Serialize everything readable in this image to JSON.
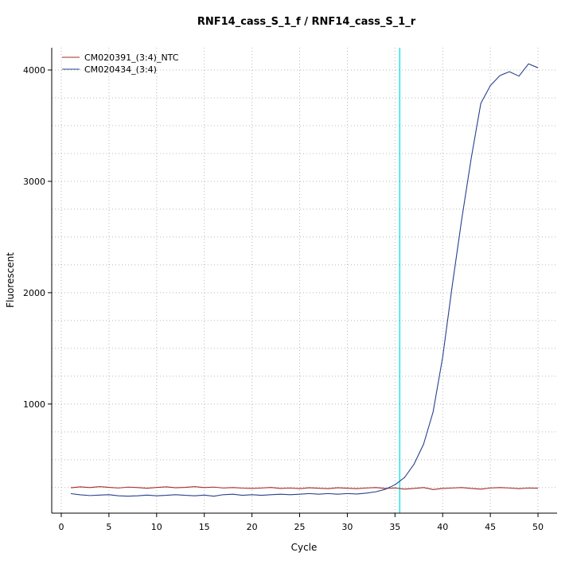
{
  "chart_data": {
    "type": "line",
    "title": "RNF14_cass_S_1_f / RNF14_cass_S_1_r",
    "xlabel": "Cycle",
    "ylabel": "Fluorescent",
    "xlim": [
      -1,
      52
    ],
    "ylim": [
      20,
      4200
    ],
    "x_ticks": [
      0,
      5,
      10,
      15,
      20,
      25,
      30,
      35,
      40,
      45,
      50
    ],
    "y_ticks": [
      1000,
      2000,
      3000,
      4000
    ],
    "grid": {
      "x_step": 5,
      "y_step": 250,
      "color": "#b8b8b8",
      "style": "dotted"
    },
    "threshold_line": {
      "x": 35.5,
      "color": "#00e5ee"
    },
    "x": [
      1,
      2,
      3,
      4,
      5,
      6,
      7,
      8,
      9,
      10,
      11,
      12,
      13,
      14,
      15,
      16,
      17,
      18,
      19,
      20,
      21,
      22,
      23,
      24,
      25,
      26,
      27,
      28,
      29,
      30,
      31,
      32,
      33,
      34,
      35,
      36,
      37,
      38,
      39,
      40,
      41,
      42,
      43,
      44,
      45,
      46,
      47,
      48,
      49,
      50
    ],
    "series": [
      {
        "name": "CM020391_(3:4)_NTC",
        "color": "#a52a2a",
        "values": [
          248,
          256,
          250,
          258,
          252,
          246,
          254,
          250,
          244,
          251,
          256,
          248,
          252,
          258,
          250,
          254,
          246,
          250,
          245,
          242,
          246,
          251,
          242,
          246,
          240,
          248,
          244,
          240,
          248,
          244,
          240,
          246,
          250,
          242,
          246,
          236,
          242,
          250,
          232,
          242,
          246,
          250,
          242,
          236,
          246,
          250,
          246,
          240,
          246,
          244
        ]
      },
      {
        "name": "CM020434_(3:4)",
        "color": "#27408b",
        "values": [
          195,
          185,
          178,
          182,
          186,
          176,
          172,
          176,
          182,
          176,
          180,
          186,
          180,
          176,
          182,
          172,
          186,
          190,
          180,
          186,
          180,
          186,
          190,
          186,
          190,
          196,
          190,
          196,
          190,
          196,
          192,
          200,
          212,
          235,
          275,
          340,
          460,
          640,
          930,
          1420,
          2060,
          2660,
          3210,
          3700,
          3860,
          3950,
          3985,
          3945,
          4055,
          4020
        ]
      }
    ],
    "legend_position": "top-left"
  }
}
